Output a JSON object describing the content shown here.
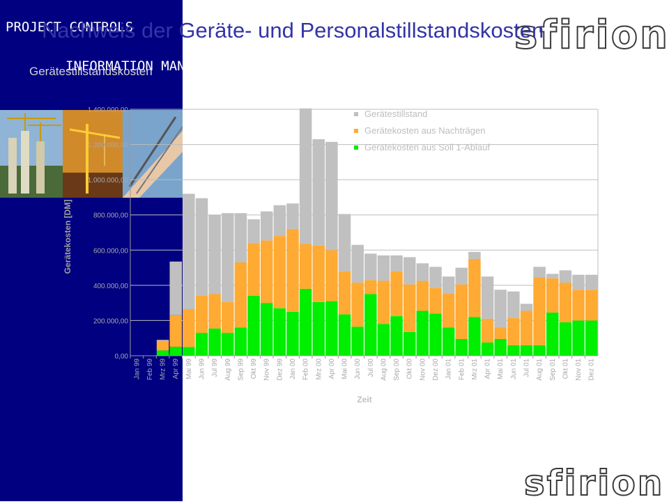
{
  "header": {
    "title": "Nachweis der Geräte- und Personalstillstandskosten",
    "subtitle": "Gerätestillstandskosten",
    "logo": "sfirion",
    "brand_line1": "PROJECT CONTROLS",
    "brand_line2": "INFORMATION MANAGEMENT"
  },
  "colors": {
    "sidebar": "#000080",
    "stillstand": "#c0c0c0",
    "nachtraege": "#ffaa33",
    "soll": "#00ee00",
    "title": "#3434a6"
  },
  "chart_data": {
    "type": "bar",
    "stacked": true,
    "xlabel": "Zeit",
    "ylabel": "Gerätekosten [DM]",
    "ylim": [
      0,
      1400000
    ],
    "yticks": [
      "0,00",
      "200.000,00",
      "400.000,00",
      "600.000,00",
      "800.000,00",
      "1.000.000,00",
      "1.200.000,00",
      "1.400.000,00"
    ],
    "grid": true,
    "legend_position": "top",
    "categories": [
      "Jan 99",
      "Feb 99",
      "Mrz 99",
      "Apr 99",
      "Mai 99",
      "Jun 99",
      "Jul 99",
      "Aug 99",
      "Sep 99",
      "Okt 99",
      "Nov 99",
      "Dez 99",
      "Jan 00",
      "Feb 00",
      "Mrz 00",
      "Apr 00",
      "Mai 00",
      "Jun 00",
      "Jul 00",
      "Aug 00",
      "Sep 00",
      "Okt 00",
      "Nov 00",
      "Dez 00",
      "Jan 01",
      "Feb 01",
      "Mrz 01",
      "Apr 01",
      "Mai 01",
      "Jun 01",
      "Jul 01",
      "Aug 01",
      "Sep 01",
      "Okt 01",
      "Nov 01",
      "Dez 01"
    ],
    "series": [
      {
        "name": "Gerätekosten aus Soll 1-Ablauf",
        "color": "#00ee00",
        "values": [
          0,
          0,
          30000,
          50000,
          50000,
          130000,
          155000,
          130000,
          160000,
          340000,
          300000,
          270000,
          250000,
          380000,
          305000,
          310000,
          235000,
          165000,
          350000,
          180000,
          225000,
          135000,
          255000,
          240000,
          160000,
          95000,
          220000,
          75000,
          95000,
          60000,
          60000,
          60000,
          245000,
          190000,
          200000,
          200000
        ]
      },
      {
        "name": "Gerätekosten aus Nachträgen",
        "color": "#ffaa33",
        "values": [
          0,
          0,
          55000,
          180000,
          215000,
          210000,
          195000,
          175000,
          370000,
          300000,
          355000,
          410000,
          470000,
          255000,
          320000,
          290000,
          245000,
          250000,
          80000,
          245000,
          255000,
          270000,
          170000,
          145000,
          195000,
          310000,
          330000,
          135000,
          65000,
          155000,
          195000,
          385000,
          195000,
          225000,
          175000,
          175000
        ]
      },
      {
        "name": "Gerätestillstand",
        "color": "#c0c0c0",
        "values": [
          0,
          0,
          5000,
          305000,
          655000,
          555000,
          450000,
          505000,
          280000,
          135000,
          165000,
          175000,
          145000,
          770000,
          605000,
          615000,
          325000,
          215000,
          150000,
          145000,
          90000,
          155000,
          100000,
          120000,
          95000,
          95000,
          40000,
          240000,
          215000,
          150000,
          40000,
          60000,
          25000,
          70000,
          85000,
          85000
        ]
      }
    ]
  }
}
